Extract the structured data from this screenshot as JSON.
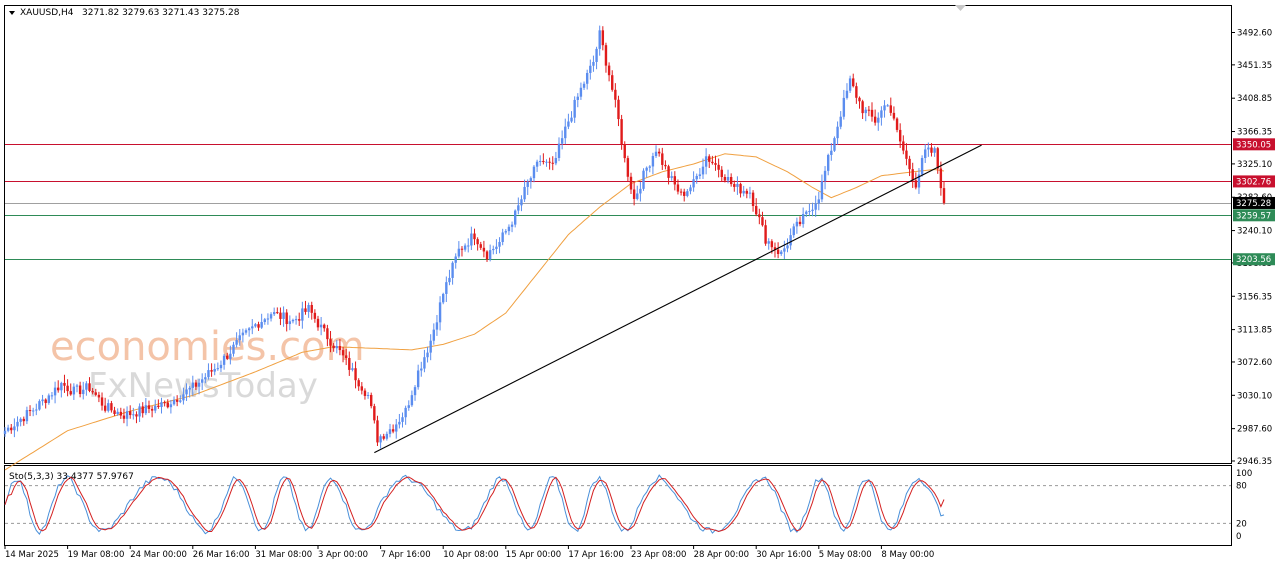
{
  "header": {
    "symbol": "XAUUSD,H4",
    "ohlc": "3271.82 3279.63 3271.43 3275.28"
  },
  "watermark": {
    "line1": "economies.com",
    "line2": "FxNewsToday"
  },
  "colors": {
    "bull": "#5b8def",
    "bear": "#e01b1b",
    "ma": "#f0a040",
    "resistance": "#c8102e",
    "support": "#2e8b57",
    "price_line": "#a0a0a0",
    "stoch_k": "#4a90d9",
    "stoch_d": "#d42020"
  },
  "chart_data": {
    "type": "candlestick",
    "symbol": "XAUUSD",
    "timeframe": "H4",
    "ylim": [
      2946.35,
      3510
    ],
    "y_ticks": [
      2946.35,
      2987.6,
      3030.1,
      3072.6,
      3113.85,
      3156.35,
      3198.85,
      3240.1,
      3282.6,
      3325.1,
      3366.35,
      3408.85,
      3451.35,
      3492.6
    ],
    "x_ticks": [
      "14 Mar 2025",
      "19 Mar 08:00",
      "24 Mar 00:00",
      "26 Mar 16:00",
      "31 Mar 08:00",
      "3 Apr 00:00",
      "7 Apr 16:00",
      "10 Apr 08:00",
      "15 Apr 00:00",
      "17 Apr 16:00",
      "23 Apr 08:00",
      "28 Apr 00:00",
      "30 Apr 16:00",
      "5 May 08:00",
      "8 May 00:00"
    ],
    "x_tick_index": [
      0,
      20,
      40,
      60,
      80,
      100,
      120,
      140,
      160,
      180,
      200,
      220,
      240,
      260,
      280
    ],
    "horizontal_levels": [
      {
        "value": 3350.05,
        "label": "3350.05",
        "kind": "resistance"
      },
      {
        "value": 3302.76,
        "label": "3302.76",
        "kind": "resistance"
      },
      {
        "value": 3275.28,
        "label": "3275.28",
        "kind": "price"
      },
      {
        "value": 3259.57,
        "label": "3259.57",
        "kind": "support"
      },
      {
        "value": 3203.56,
        "label": "3203.56",
        "kind": "support"
      }
    ],
    "trendline": {
      "start": {
        "index": 118,
        "value": 2957
      },
      "end": {
        "index": 312,
        "value": 3349
      }
    },
    "anchors": [
      [
        0,
        2985
      ],
      [
        10,
        3015
      ],
      [
        18,
        3045
      ],
      [
        22,
        3035
      ],
      [
        27,
        3040
      ],
      [
        32,
        3015
      ],
      [
        38,
        3005
      ],
      [
        45,
        3012
      ],
      [
        52,
        3020
      ],
      [
        60,
        3040
      ],
      [
        68,
        3068
      ],
      [
        75,
        3100
      ],
      [
        80,
        3120
      ],
      [
        85,
        3135
      ],
      [
        92,
        3125
      ],
      [
        97,
        3140
      ],
      [
        102,
        3110
      ],
      [
        107,
        3085
      ],
      [
        111,
        3060
      ],
      [
        116,
        3030
      ],
      [
        119,
        2975
      ],
      [
        124,
        2990
      ],
      [
        128,
        3010
      ],
      [
        132,
        3060
      ],
      [
        136,
        3100
      ],
      [
        140,
        3160
      ],
      [
        145,
        3215
      ],
      [
        150,
        3235
      ],
      [
        154,
        3210
      ],
      [
        158,
        3225
      ],
      [
        163,
        3260
      ],
      [
        167,
        3300
      ],
      [
        171,
        3330
      ],
      [
        175,
        3320
      ],
      [
        180,
        3380
      ],
      [
        184,
        3420
      ],
      [
        188,
        3455
      ],
      [
        190,
        3490
      ],
      [
        193,
        3440
      ],
      [
        196,
        3380
      ],
      [
        198,
        3330
      ],
      [
        201,
        3280
      ],
      [
        205,
        3320
      ],
      [
        208,
        3345
      ],
      [
        212,
        3310
      ],
      [
        216,
        3285
      ],
      [
        220,
        3300
      ],
      [
        224,
        3335
      ],
      [
        228,
        3320
      ],
      [
        233,
        3295
      ],
      [
        238,
        3290
      ],
      [
        243,
        3230
      ],
      [
        248,
        3210
      ],
      [
        252,
        3240
      ],
      [
        256,
        3260
      ],
      [
        260,
        3285
      ],
      [
        263,
        3330
      ],
      [
        267,
        3390
      ],
      [
        270,
        3430
      ],
      [
        274,
        3395
      ],
      [
        278,
        3380
      ],
      [
        282,
        3405
      ],
      [
        285,
        3365
      ],
      [
        288,
        3330
      ],
      [
        291,
        3300
      ],
      [
        294,
        3340
      ],
      [
        297,
        3340
      ],
      [
        299,
        3300
      ],
      [
        300,
        3275
      ]
    ],
    "ma_anchors": [
      [
        0,
        2935
      ],
      [
        20,
        2985
      ],
      [
        40,
        3010
      ],
      [
        60,
        3030
      ],
      [
        80,
        3060
      ],
      [
        95,
        3085
      ],
      [
        105,
        3092
      ],
      [
        118,
        3090
      ],
      [
        130,
        3088
      ],
      [
        140,
        3095
      ],
      [
        150,
        3108
      ],
      [
        160,
        3135
      ],
      [
        170,
        3185
      ],
      [
        180,
        3235
      ],
      [
        190,
        3270
      ],
      [
        200,
        3300
      ],
      [
        210,
        3315
      ],
      [
        220,
        3325
      ],
      [
        230,
        3338
      ],
      [
        240,
        3334
      ],
      [
        250,
        3315
      ],
      [
        258,
        3295
      ],
      [
        264,
        3282
      ],
      [
        272,
        3295
      ],
      [
        280,
        3310
      ],
      [
        290,
        3315
      ],
      [
        297,
        3318
      ],
      [
        300,
        3316
      ]
    ],
    "stochastic": {
      "label": "Sto(5,3,3) 33.4377 57.9767",
      "k": 33.4377,
      "d": 57.9767,
      "ylim": [
        0,
        100
      ],
      "levels": [
        20,
        80
      ],
      "y_ticks": [
        100,
        80,
        20,
        0
      ]
    }
  }
}
